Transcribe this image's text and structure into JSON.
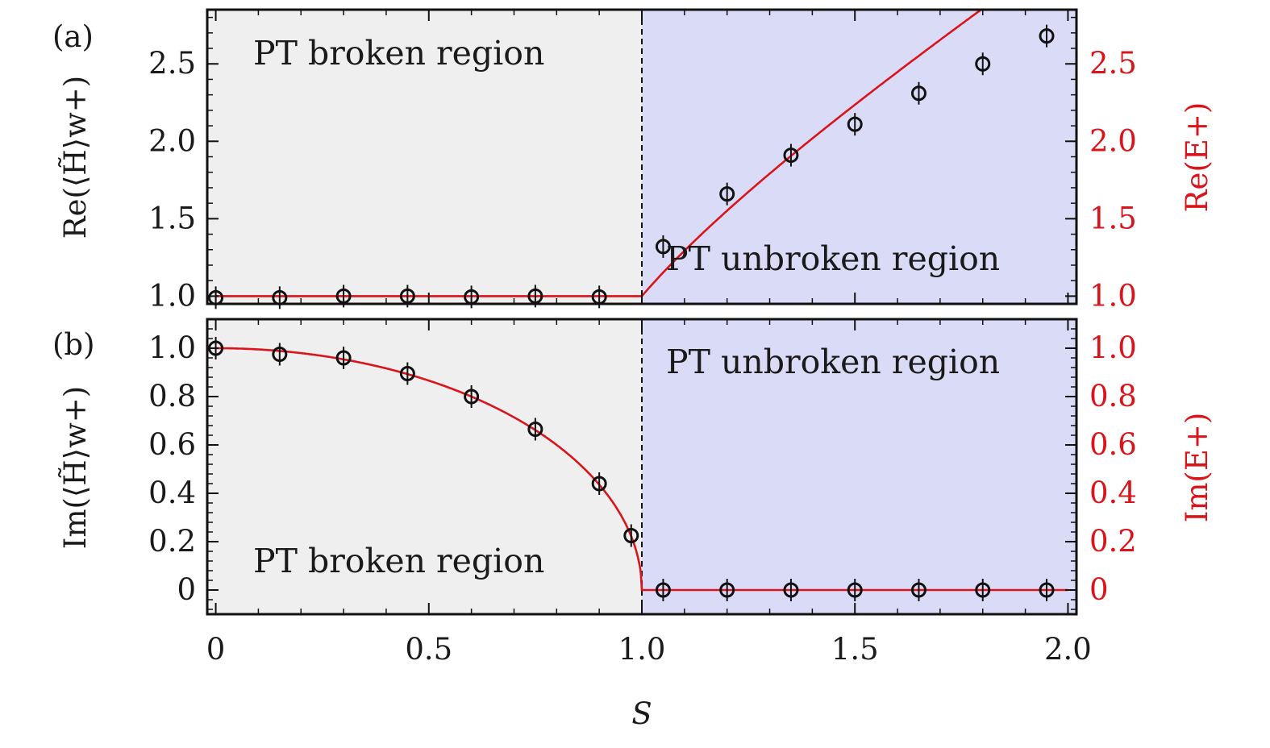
{
  "colors": {
    "broken_bg": "#efefef",
    "unbroken_bg": "#dadcf7",
    "curve": "#d9141b",
    "right_axis": "#d9141b",
    "frame": "#111111"
  },
  "xaxis": {
    "label": "S",
    "ticks": [
      "0",
      "0.5",
      "1.0",
      "1.5",
      "2.0"
    ]
  },
  "chart_data": [
    {
      "type": "line",
      "panel_label": "(a)",
      "ylabel_left": "Re(⟨H̃⟩w+)",
      "ylabel_right": "Re(E+)",
      "xlim": [
        -0.02,
        2.02
      ],
      "ylim": [
        0.95,
        2.85
      ],
      "yticks": [
        "1.0",
        "1.5",
        "2.0",
        "2.5"
      ],
      "yticks_right": [
        "1.0",
        "1.5",
        "2.0",
        "2.5"
      ],
      "phase_boundary": 1.0,
      "region_labels": {
        "left": "PT broken region",
        "right": "PT unbroken region"
      },
      "series": [
        {
          "kind": "points",
          "x": [
            0,
            0.15,
            0.3,
            0.45,
            0.6,
            0.75,
            0.9,
            1.05,
            1.2,
            1.35,
            1.5,
            1.65,
            1.8,
            1.95
          ],
          "y": [
            0.99,
            0.99,
            1.0,
            1.0,
            0.995,
            1.0,
            0.995,
            1.32,
            1.66,
            1.91,
            2.11,
            2.31,
            2.5,
            2.68
          ]
        },
        {
          "kind": "theory",
          "formula": "sqrt(1+max(0,S^2-1))... = 1 for S<1, Re part grows for S>1"
        }
      ]
    },
    {
      "type": "line",
      "panel_label": "(b)",
      "ylabel_left": "Im(⟨H̃⟩w+)",
      "ylabel_right": "Im(E+)",
      "xlim": [
        -0.02,
        2.02
      ],
      "ylim": [
        -0.1,
        1.12
      ],
      "yticks": [
        "0",
        "0.2",
        "0.4",
        "0.6",
        "0.8",
        "1.0"
      ],
      "yticks_right": [
        "0",
        "0.2",
        "0.4",
        "0.6",
        "0.8",
        "1.0"
      ],
      "phase_boundary": 1.0,
      "region_labels": {
        "left": "PT broken region",
        "right": "PT unbroken region"
      },
      "series": [
        {
          "kind": "points",
          "x": [
            0,
            0.15,
            0.3,
            0.45,
            0.6,
            0.75,
            0.9,
            0.975,
            1.05,
            1.2,
            1.35,
            1.5,
            1.65,
            1.8,
            1.95
          ],
          "y": [
            1.0,
            0.975,
            0.96,
            0.895,
            0.8,
            0.665,
            0.44,
            0.225,
            0.0,
            0.0,
            0.0,
            0.0,
            0.0,
            0.0,
            0.0
          ]
        },
        {
          "kind": "theory",
          "formula": "sqrt(1-S^2) for S<1, 0 for S>1"
        }
      ]
    }
  ]
}
